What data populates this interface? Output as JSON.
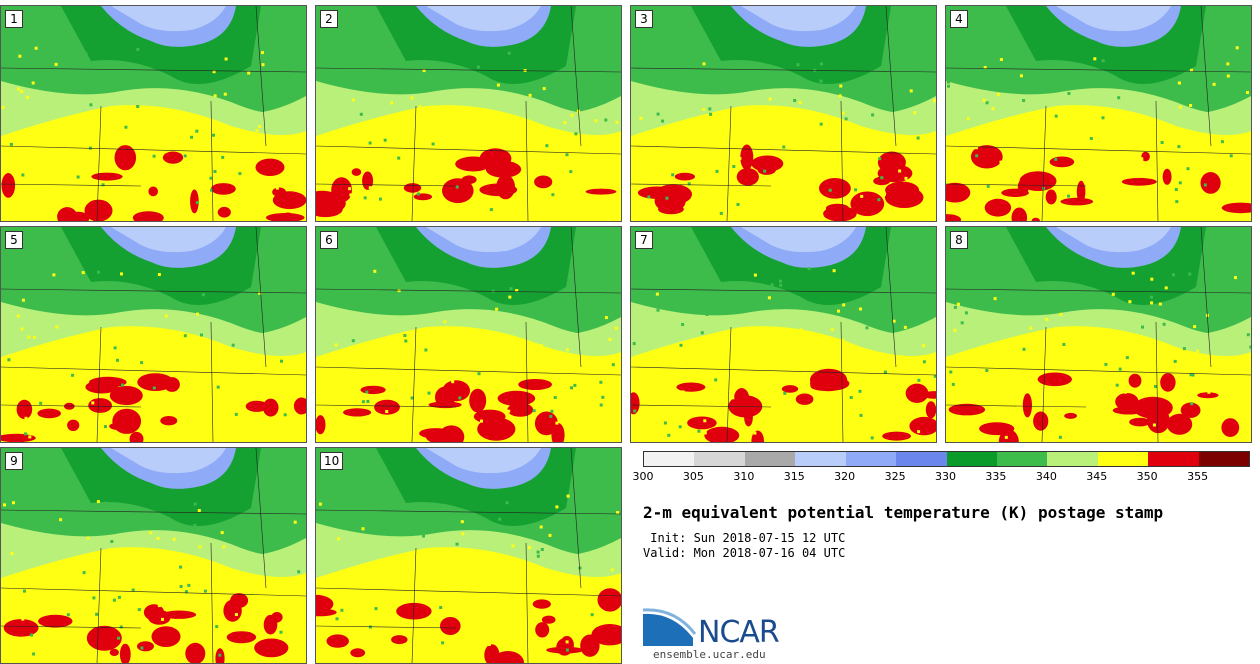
{
  "panels": [
    {
      "label": "1"
    },
    {
      "label": "2"
    },
    {
      "label": "3"
    },
    {
      "label": "4"
    },
    {
      "label": "5"
    },
    {
      "label": "6"
    },
    {
      "label": "7"
    },
    {
      "label": "8"
    },
    {
      "label": "9"
    },
    {
      "label": "10"
    }
  ],
  "legend": {
    "colors": [
      "#f2f2f2",
      "#d6d6d6",
      "#a9a9a9",
      "#b9cdfb",
      "#8faaf6",
      "#6b87ee",
      "#0b9b2b",
      "#3dbb4b",
      "#b8f07a",
      "#ffff14",
      "#e0000d",
      "#7d0000"
    ],
    "ticks": [
      "300",
      "305",
      "310",
      "315",
      "320",
      "325",
      "330",
      "335",
      "340",
      "345",
      "350",
      "355"
    ]
  },
  "title": "2-m equivalent potential temperature (K) postage stamp",
  "init": " Init: Sun 2018-07-15 12 UTC",
  "valid": "Valid: Mon 2018-07-16 04 UTC",
  "logo": {
    "text": "NCAR",
    "url": "ensemble.ucar.edu"
  }
}
